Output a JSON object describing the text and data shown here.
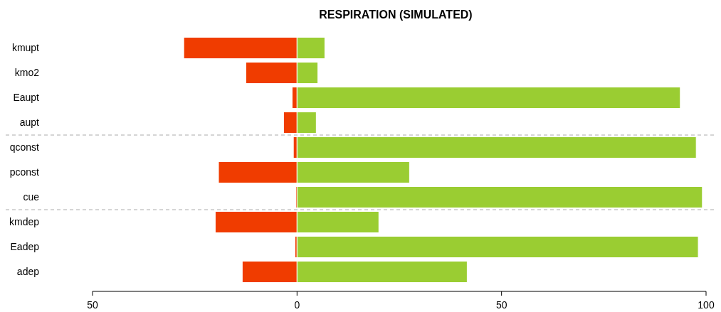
{
  "chart_data": {
    "type": "bar",
    "title": "RESPIRATION (SIMULATED)",
    "orientation": "horizontal",
    "stacked": true,
    "categories": [
      "kmupt",
      "kmo2",
      "Eaupt",
      "aupt",
      "qconst",
      "pconst",
      "cue",
      "kmdep",
      "Eadep",
      "adep"
    ],
    "series": [
      {
        "color": "#f03c00",
        "values": [
          -27.7,
          -12.5,
          -1.2,
          -3.3,
          -0.9,
          -19.2,
          -0.3,
          -20,
          -0.5,
          -13.4
        ]
      },
      {
        "color": "#9acd32",
        "values": [
          6.8,
          5.1,
          93.7,
          4.7,
          97.6,
          27.5,
          99.1,
          20,
          98.1,
          41.6
        ]
      }
    ],
    "xlim": [
      -50,
      100
    ],
    "xticks": [
      {
        "value": -50,
        "label": "50"
      },
      0,
      50,
      100
    ],
    "grid": false
  }
}
